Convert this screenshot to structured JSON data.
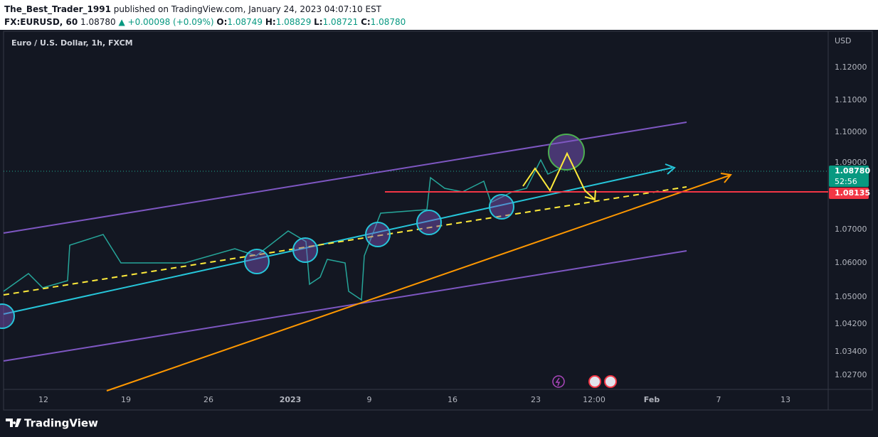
{
  "header": {
    "author": "The_Best_Trader_1991",
    "published": "published on TradingView.com, January 24, 2023 04:07:10 EST"
  },
  "symbol_bar": {
    "symbol": "FX:EURUSD, 60",
    "last": "1.08780",
    "change": "▲ +0.00098 (+0.09%)",
    "ohlc": [
      {
        "label": "O:",
        "value": "1.08749"
      },
      {
        "label": "H:",
        "value": "1.08829"
      },
      {
        "label": "L:",
        "value": "1.08721"
      },
      {
        "label": "C:",
        "value": "1.08780"
      }
    ]
  },
  "chart": {
    "title": "Euro / U.S. Dollar, 1h, FXCM",
    "currency": "USD",
    "price_labels": [
      "1.12000",
      "1.11000",
      "1.10000",
      "1.09000",
      "1.07000",
      "1.06000",
      "1.05000",
      "1.04200",
      "1.03400",
      "1.02700"
    ],
    "time_labels": [
      "12",
      "19",
      "26",
      "2023",
      "9",
      "16",
      "23",
      "12:00",
      "Feb",
      "7",
      "13"
    ],
    "last_price_tag": "1.08780",
    "countdown_tag": "52:56",
    "level_tag": "1.08135"
  },
  "footer": {
    "brand": "TradingView"
  }
}
